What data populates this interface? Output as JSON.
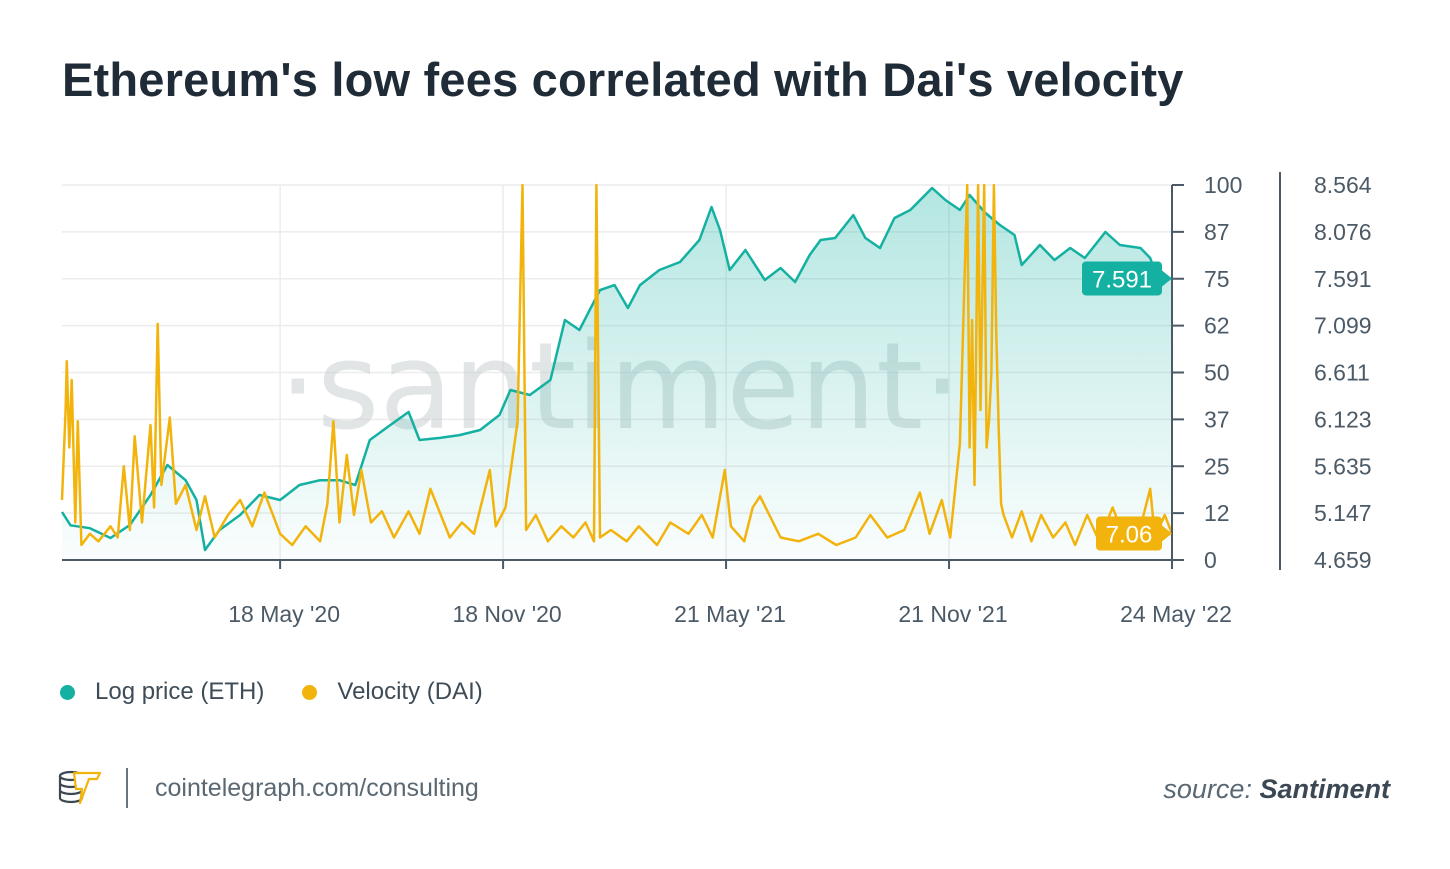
{
  "title": "Ethereum's low fees correlated with Dai's velocity",
  "legend": [
    {
      "label": "Log price (ETH)",
      "color": "#14b1a2"
    },
    {
      "label": "Velocity (DAI)",
      "color": "#f2b40c"
    }
  ],
  "watermark": "·santiment·",
  "footer": {
    "link": "cointelegraph.com/consulting",
    "source_prefix": "source:",
    "source_name": "Santiment"
  },
  "chart_data": {
    "type": "line",
    "title": "Ethereum's low fees correlated with Dai's velocity",
    "x_range": [
      "2019-11-20",
      "2022-05-24"
    ],
    "x_ticks": [
      {
        "date": "2020-05-18",
        "label": "18 May '20"
      },
      {
        "date": "2020-11-18",
        "label": "18 Nov '20"
      },
      {
        "date": "2021-05-21",
        "label": "21 May '21"
      },
      {
        "date": "2021-11-21",
        "label": "21 Nov '21"
      },
      {
        "date": "2022-05-24",
        "label": "24 May '22"
      }
    ],
    "left_axis": {
      "range": [
        0,
        100
      ],
      "ticks": [
        "100",
        "87",
        "75",
        "62",
        "50",
        "37",
        "25",
        "12",
        "0"
      ]
    },
    "right_axis": {
      "range": [
        4.659,
        8.564
      ],
      "ticks": [
        "8.564",
        "8.076",
        "7.591",
        "7.099",
        "6.611",
        "6.123",
        "5.635",
        "5.147",
        "4.659"
      ]
    },
    "grid": true,
    "legend_placement": "bottom-left",
    "series": [
      {
        "name": "Log price (ETH)",
        "axis": "right",
        "color": "#14b1a2",
        "area": true,
        "last_value_label": "7.591",
        "points": [
          [
            "2019-11-20",
            5.159
          ],
          [
            "2019-11-27",
            5.02
          ],
          [
            "2019-12-13",
            4.99
          ],
          [
            "2019-12-30",
            4.888
          ],
          [
            "2020-01-15",
            5.023
          ],
          [
            "2020-02-01",
            5.336
          ],
          [
            "2020-02-15",
            5.648
          ],
          [
            "2020-03-01",
            5.49
          ],
          [
            "2020-03-10",
            5.284
          ],
          [
            "2020-03-17",
            4.763
          ],
          [
            "2020-03-29",
            4.971
          ],
          [
            "2020-04-15",
            5.128
          ],
          [
            "2020-05-01",
            5.336
          ],
          [
            "2020-05-18",
            5.284
          ],
          [
            "2020-06-03",
            5.44
          ],
          [
            "2020-06-20",
            5.49
          ],
          [
            "2020-07-06",
            5.49
          ],
          [
            "2020-07-19",
            5.44
          ],
          [
            "2020-07-31",
            5.909
          ],
          [
            "2020-08-17",
            6.065
          ],
          [
            "2020-09-01",
            6.2
          ],
          [
            "2020-09-10",
            5.909
          ],
          [
            "2020-09-27",
            5.93
          ],
          [
            "2020-10-13",
            5.96
          ],
          [
            "2020-10-30",
            6.013
          ],
          [
            "2020-11-15",
            6.169
          ],
          [
            "2020-11-24",
            6.429
          ],
          [
            "2020-12-10",
            6.377
          ],
          [
            "2020-12-27",
            6.533
          ],
          [
            "2021-01-08",
            7.158
          ],
          [
            "2021-01-20",
            7.054
          ],
          [
            "2021-02-06",
            7.47
          ],
          [
            "2021-02-18",
            7.522
          ],
          [
            "2021-03-01",
            7.283
          ],
          [
            "2021-03-11",
            7.522
          ],
          [
            "2021-03-27",
            7.679
          ],
          [
            "2021-04-13",
            7.762
          ],
          [
            "2021-04-29",
            7.991
          ],
          [
            "2021-05-09",
            8.335
          ],
          [
            "2021-05-16",
            8.095
          ],
          [
            "2021-05-24",
            7.679
          ],
          [
            "2021-06-06",
            7.887
          ],
          [
            "2021-06-22",
            7.575
          ],
          [
            "2021-07-05",
            7.7
          ],
          [
            "2021-07-17",
            7.554
          ],
          [
            "2021-07-29",
            7.835
          ],
          [
            "2021-08-07",
            7.991
          ],
          [
            "2021-08-19",
            8.012
          ],
          [
            "2021-09-03",
            8.251
          ],
          [
            "2021-09-13",
            8.012
          ],
          [
            "2021-09-25",
            7.908
          ],
          [
            "2021-10-07",
            8.22
          ],
          [
            "2021-10-20",
            8.304
          ],
          [
            "2021-11-07",
            8.533
          ],
          [
            "2021-11-18",
            8.408
          ],
          [
            "2021-11-30",
            8.304
          ],
          [
            "2021-12-08",
            8.46
          ],
          [
            "2021-12-21",
            8.272
          ],
          [
            "2022-01-02",
            8.147
          ],
          [
            "2022-01-14",
            8.043
          ],
          [
            "2022-01-20",
            7.731
          ],
          [
            "2022-02-04",
            7.939
          ],
          [
            "2022-02-16",
            7.783
          ],
          [
            "2022-03-01",
            7.908
          ],
          [
            "2022-03-13",
            7.804
          ],
          [
            "2022-03-30",
            8.075
          ],
          [
            "2022-04-11",
            7.939
          ],
          [
            "2022-04-28",
            7.908
          ],
          [
            "2022-05-06",
            7.804
          ],
          [
            "2022-05-12",
            7.591
          ],
          [
            "2022-05-24",
            7.591
          ]
        ]
      },
      {
        "name": "Velocity (DAI)",
        "axis": "left",
        "color": "#f2b40c",
        "area": false,
        "last_value_label": "7.06",
        "points": [
          [
            "2019-11-20",
            16
          ],
          [
            "2019-11-23",
            40
          ],
          [
            "2019-11-24",
            53
          ],
          [
            "2019-11-26",
            30
          ],
          [
            "2019-11-28",
            48
          ],
          [
            "2019-12-01",
            10
          ],
          [
            "2019-12-03",
            37
          ],
          [
            "2019-12-06",
            4
          ],
          [
            "2019-12-13",
            7
          ],
          [
            "2019-12-20",
            5
          ],
          [
            "2019-12-30",
            9
          ],
          [
            "2020-01-05",
            6
          ],
          [
            "2020-01-10",
            25
          ],
          [
            "2020-01-15",
            8
          ],
          [
            "2020-01-19",
            33
          ],
          [
            "2020-01-25",
            10
          ],
          [
            "2020-02-01",
            36
          ],
          [
            "2020-02-04",
            14
          ],
          [
            "2020-02-07",
            63
          ],
          [
            "2020-02-10",
            20
          ],
          [
            "2020-02-17",
            38
          ],
          [
            "2020-02-22",
            15
          ],
          [
            "2020-03-01",
            20
          ],
          [
            "2020-03-10",
            8
          ],
          [
            "2020-03-17",
            17
          ],
          [
            "2020-03-25",
            6
          ],
          [
            "2020-04-05",
            12
          ],
          [
            "2020-04-15",
            16
          ],
          [
            "2020-04-25",
            9
          ],
          [
            "2020-05-05",
            18
          ],
          [
            "2020-05-18",
            7
          ],
          [
            "2020-05-28",
            4
          ],
          [
            "2020-06-08",
            9
          ],
          [
            "2020-06-20",
            5
          ],
          [
            "2020-06-26",
            15
          ],
          [
            "2020-07-01",
            37
          ],
          [
            "2020-07-06",
            10
          ],
          [
            "2020-07-12",
            28
          ],
          [
            "2020-07-18",
            12
          ],
          [
            "2020-07-24",
            24
          ],
          [
            "2020-08-01",
            10
          ],
          [
            "2020-08-10",
            13
          ],
          [
            "2020-08-20",
            6
          ],
          [
            "2020-09-01",
            13
          ],
          [
            "2020-09-10",
            7
          ],
          [
            "2020-09-19",
            19
          ],
          [
            "2020-10-05",
            6
          ],
          [
            "2020-10-15",
            10
          ],
          [
            "2020-10-25",
            7
          ],
          [
            "2020-11-07",
            24
          ],
          [
            "2020-11-12",
            9
          ],
          [
            "2020-11-20",
            14
          ],
          [
            "2020-11-30",
            37
          ],
          [
            "2020-12-04",
            100
          ],
          [
            "2020-12-07",
            8
          ],
          [
            "2020-12-15",
            12
          ],
          [
            "2020-12-25",
            5
          ],
          [
            "2021-01-05",
            9
          ],
          [
            "2021-01-15",
            6
          ],
          [
            "2021-01-25",
            10
          ],
          [
            "2021-02-01",
            5
          ],
          [
            "2021-02-03",
            100
          ],
          [
            "2021-02-06",
            6
          ],
          [
            "2021-02-15",
            8
          ],
          [
            "2021-02-28",
            5
          ],
          [
            "2021-03-10",
            9
          ],
          [
            "2021-03-25",
            4
          ],
          [
            "2021-04-05",
            10
          ],
          [
            "2021-04-20",
            7
          ],
          [
            "2021-05-01",
            12
          ],
          [
            "2021-05-10",
            6
          ],
          [
            "2021-05-20",
            24
          ],
          [
            "2021-05-25",
            9
          ],
          [
            "2021-06-05",
            5
          ],
          [
            "2021-06-12",
            14
          ],
          [
            "2021-06-18",
            17
          ],
          [
            "2021-07-05",
            6
          ],
          [
            "2021-07-20",
            5
          ],
          [
            "2021-08-05",
            7
          ],
          [
            "2021-08-20",
            4
          ],
          [
            "2021-09-05",
            6
          ],
          [
            "2021-09-17",
            12
          ],
          [
            "2021-10-01",
            6
          ],
          [
            "2021-10-15",
            8
          ],
          [
            "2021-10-28",
            18
          ],
          [
            "2021-11-05",
            7
          ],
          [
            "2021-11-15",
            16
          ],
          [
            "2021-11-22",
            6
          ],
          [
            "2021-11-30",
            31
          ],
          [
            "2021-12-06",
            100
          ],
          [
            "2021-12-08",
            30
          ],
          [
            "2021-12-10",
            64
          ],
          [
            "2021-12-12",
            20
          ],
          [
            "2021-12-15",
            100
          ],
          [
            "2021-12-17",
            40
          ],
          [
            "2021-12-20",
            100
          ],
          [
            "2021-12-22",
            30
          ],
          [
            "2021-12-24",
            37
          ],
          [
            "2021-12-26",
            50
          ],
          [
            "2021-12-28",
            100
          ],
          [
            "2021-12-30",
            60
          ],
          [
            "2022-01-01",
            35
          ],
          [
            "2022-01-03",
            15
          ],
          [
            "2022-01-05",
            12
          ],
          [
            "2022-01-12",
            6
          ],
          [
            "2022-01-20",
            13
          ],
          [
            "2022-01-28",
            5
          ],
          [
            "2022-02-05",
            12
          ],
          [
            "2022-02-15",
            6
          ],
          [
            "2022-02-25",
            10
          ],
          [
            "2022-03-05",
            4
          ],
          [
            "2022-03-15",
            12
          ],
          [
            "2022-03-25",
            5
          ],
          [
            "2022-04-05",
            14
          ],
          [
            "2022-04-15",
            6
          ],
          [
            "2022-04-25",
            5
          ],
          [
            "2022-05-06",
            19
          ],
          [
            "2022-05-10",
            6
          ],
          [
            "2022-05-18",
            12
          ],
          [
            "2022-05-24",
            7.06
          ]
        ]
      }
    ]
  }
}
